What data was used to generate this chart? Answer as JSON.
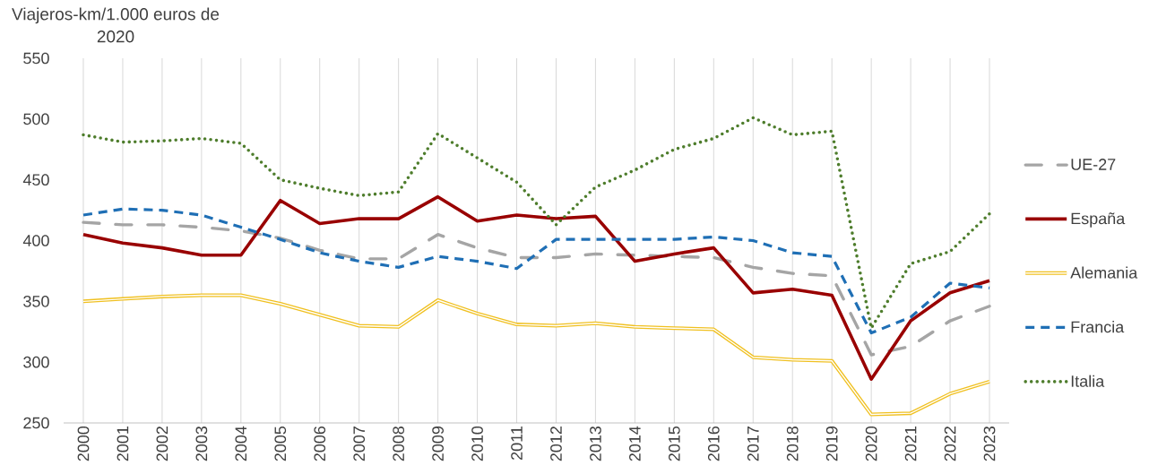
{
  "chart_data": {
    "type": "line",
    "ylabel": "Viajeros-km/1.000 euros de 2020",
    "categories": [
      "2000",
      "2001",
      "2002",
      "2003",
      "2004",
      "2005",
      "2006",
      "2007",
      "2008",
      "2009",
      "2010",
      "2011",
      "2012",
      "2013",
      "2014",
      "2015",
      "2016",
      "2017",
      "2018",
      "2019",
      "2020",
      "2021",
      "2022",
      "2023"
    ],
    "series": [
      {
        "name": "UE-27",
        "color": "#a5a5a5",
        "line_style": "dashdot",
        "values": [
          415,
          413,
          413,
          411,
          408,
          402,
          392,
          385,
          385,
          405,
          394,
          386,
          386,
          389,
          388,
          387,
          386,
          378,
          373,
          371,
          306,
          313,
          334,
          346
        ]
      },
      {
        "name": "España",
        "color": "#990000",
        "line_style": "solid",
        "values": [
          405,
          398,
          394,
          388,
          388,
          433,
          414,
          418,
          418,
          436,
          416,
          421,
          418,
          420,
          383,
          389,
          394,
          357,
          360,
          355,
          286,
          334,
          357,
          367
        ]
      },
      {
        "name": "Alemania",
        "color": "#f0c020",
        "line_style": "solid",
        "values": [
          350,
          352,
          354,
          355,
          355,
          348,
          339,
          330,
          329,
          351,
          340,
          331,
          330,
          332,
          329,
          328,
          327,
          304,
          302,
          301,
          257,
          258,
          274,
          284
        ]
      },
      {
        "name": "Francia",
        "color": "#1f6fb5",
        "line_style": "dashed",
        "values": [
          421,
          426,
          425,
          421,
          411,
          401,
          390,
          383,
          378,
          387,
          383,
          377,
          401,
          401,
          401,
          401,
          403,
          400,
          390,
          387,
          324,
          337,
          365,
          361
        ]
      },
      {
        "name": "Italia",
        "color": "#4e7d2c",
        "line_style": "dotted",
        "values": [
          487,
          481,
          482,
          484,
          480,
          450,
          443,
          437,
          440,
          488,
          468,
          448,
          413,
          444,
          458,
          475,
          484,
          501,
          487,
          490,
          328,
          381,
          391,
          422
        ]
      }
    ],
    "ylim": [
      250,
      550
    ],
    "yticks": [
      250,
      300,
      350,
      400,
      450,
      500,
      550
    ],
    "grid": "x",
    "legend": "right"
  }
}
